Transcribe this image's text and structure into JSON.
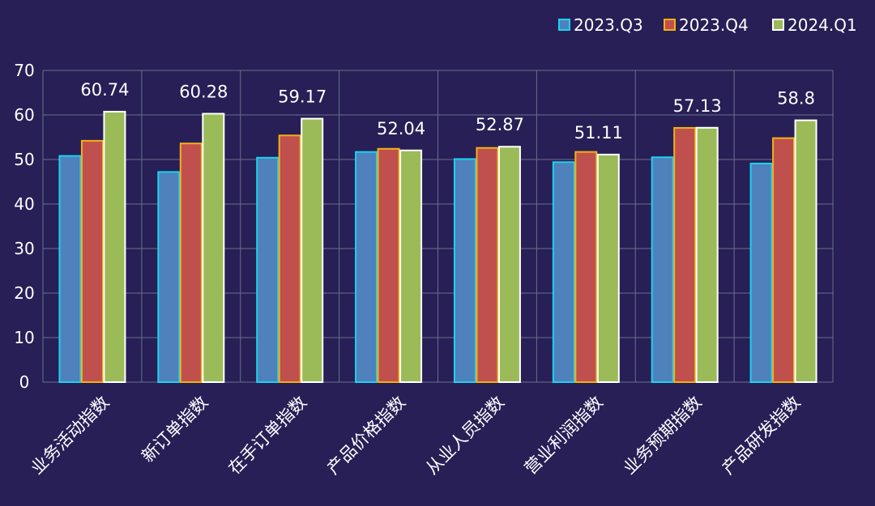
{
  "chart_data": {
    "type": "bar",
    "categories": [
      "业务活动指数",
      "新订单指数",
      "在手订单指数",
      "产品价格指数",
      "从业人员指数",
      "营业利润指数",
      "业务预期指数",
      "产品研发指数"
    ],
    "series": [
      {
        "name": "2023.Q3",
        "values": [
          50.8,
          47.2,
          50.4,
          51.7,
          50.1,
          49.4,
          50.5,
          49.1
        ],
        "color": "#4f81bd",
        "border": "#19d3f0"
      },
      {
        "name": "2023.Q4",
        "values": [
          54.2,
          53.6,
          55.4,
          52.4,
          52.6,
          51.7,
          57.1,
          54.8
        ],
        "color": "#c0504d",
        "border": "#f2b114"
      },
      {
        "name": "2024.Q1",
        "values": [
          60.74,
          60.28,
          59.17,
          52.04,
          52.87,
          51.11,
          57.13,
          58.8
        ],
        "color": "#9bbb59",
        "border": "#ffffff"
      }
    ],
    "data_labels": [
      "60.74",
      "60.28",
      "59.17",
      "52.04",
      "52.87",
      "51.11",
      "57.13",
      "58.8"
    ],
    "y_ticks": [
      "0",
      "10",
      "20",
      "30",
      "40",
      "50",
      "60",
      "70"
    ],
    "ylim": [
      0,
      70
    ],
    "grid": true,
    "legend_position": "top-right",
    "background": "#271f56",
    "grid_color": "#6b6f8e",
    "text_color": "#ffffff"
  }
}
